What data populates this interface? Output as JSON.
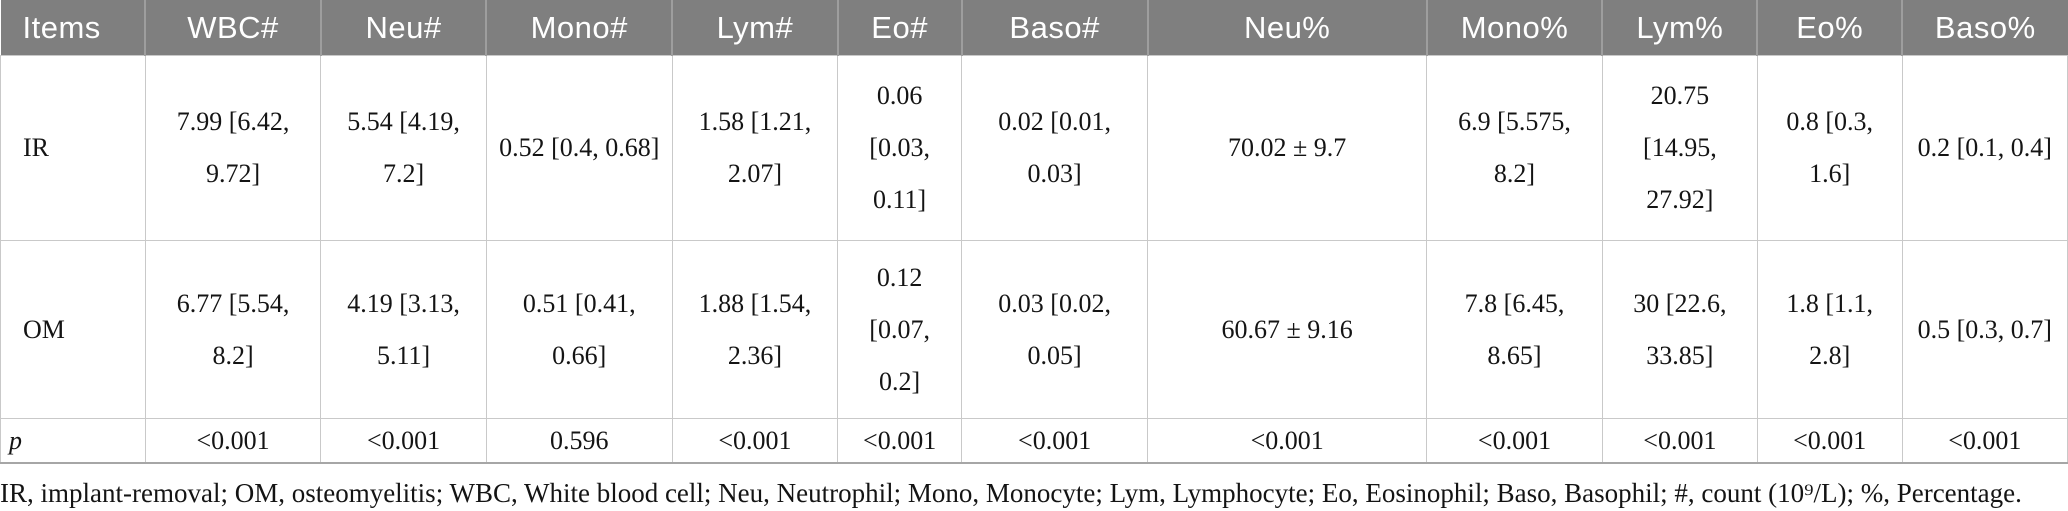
{
  "table": {
    "headers": [
      "Items",
      "WBC#",
      "Neu#",
      "Mono#",
      "Lym#",
      "Eo#",
      "Baso#",
      "Neu%",
      "Mono%",
      "Lym%",
      "Eo%",
      "Baso%"
    ],
    "rows": [
      {
        "label": "IR",
        "values": [
          "7.99 [6.42, 9.72]",
          "5.54 [4.19, 7.2]",
          "0.52 [0.4, 0.68]",
          "1.58 [1.21, 2.07]",
          "0.06 [0.03, 0.11]",
          "0.02 [0.01, 0.03]",
          "70.02 ± 9.7",
          "6.9 [5.575, 8.2]",
          "20.75 [14.95, 27.92]",
          "0.8 [0.3, 1.6]",
          "0.2 [0.1, 0.4]"
        ]
      },
      {
        "label": "OM",
        "values": [
          "6.77 [5.54, 8.2]",
          "4.19 [3.13, 5.11]",
          "0.51 [0.41, 0.66]",
          "1.88 [1.54, 2.36]",
          "0.12 [0.07, 0.2]",
          "0.03 [0.02, 0.05]",
          "60.67 ± 9.16",
          "7.8 [6.45, 8.65]",
          "30 [22.6, 33.85]",
          "1.8 [1.1, 2.8]",
          "0.5 [0.3, 0.7]"
        ]
      },
      {
        "label": "p",
        "values": [
          "<0.001",
          "<0.001",
          "0.596",
          "<0.001",
          "<0.001",
          "<0.001",
          "<0.001",
          "<0.001",
          "<0.001",
          "<0.001",
          "<0.001"
        ]
      }
    ],
    "footnote": "IR, implant-removal; OM, osteomyelitis; WBC, White blood cell; Neu, Neutrophil; Mono, Monocyte; Lym, Lymphocyte; Eo, Eosinophil; Baso, Basophil; #, count (10⁹/L); %, Percentage."
  },
  "colors": {
    "header_bg": "#7f7f7f",
    "header_text": "#ffffff",
    "header_separator": "#9e9e9e",
    "cell_border": "#c9c9c9",
    "bottom_border": "#a6a6a6",
    "text": "#141414"
  }
}
